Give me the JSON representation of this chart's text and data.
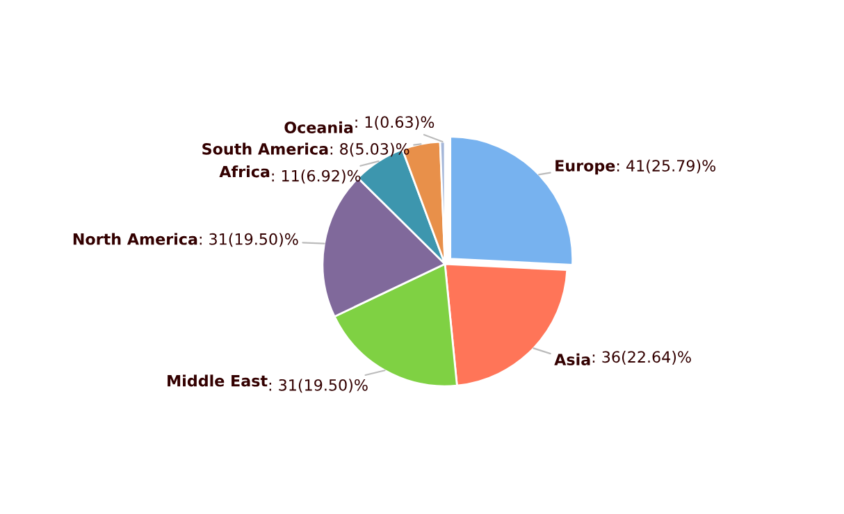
{
  "chart_data": {
    "type": "pie",
    "categories": [
      "Europe",
      "Asia",
      "Middle East",
      "North America",
      "Africa",
      "South America",
      "Oceania"
    ],
    "values": [
      41,
      36,
      31,
      31,
      11,
      8,
      1
    ],
    "value_labels": [
      ": 41(25.79)%",
      ": 36(22.64)%",
      ": 31(19.50)%",
      ": 31(19.50)%",
      ": 11(6.92)%",
      ": 8(5.03)%",
      ": 1(0.63)%"
    ],
    "colors": [
      "#77b2ef",
      "#ff7558",
      "#7fd143",
      "#80699b",
      "#3d96ae",
      "#e8904a",
      "#a4b6d8"
    ]
  }
}
